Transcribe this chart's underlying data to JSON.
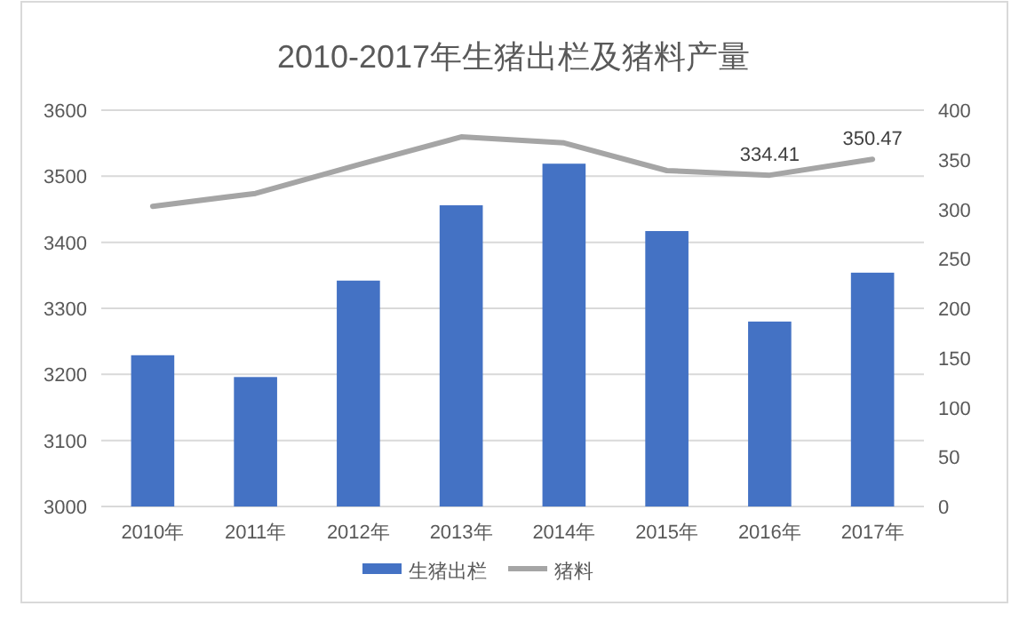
{
  "chart_data": {
    "type": "bar",
    "title": "2010-2017年生猪出栏及猪料产量",
    "categories": [
      "2010年",
      "2011年",
      "2012年",
      "2013年",
      "2014年",
      "2015年",
      "2016年",
      "2017年"
    ],
    "series": [
      {
        "name": "生猪出栏",
        "color": "#4472c4",
        "values": [
          3229,
          3196,
          3342,
          3456,
          3519,
          3417,
          3280,
          3354
        ]
      },
      {
        "name": "猪料",
        "type": "line",
        "axis": "y2",
        "color": "#a5a5a5",
        "values": [
          303,
          316,
          345,
          373,
          367,
          339,
          334.41,
          350.47
        ],
        "value_labels": [
          null,
          null,
          null,
          null,
          null,
          null,
          "334.41",
          "350.47"
        ]
      }
    ],
    "ylim": [
      3000,
      3600
    ],
    "yticks": [
      3000,
      3100,
      3200,
      3300,
      3400,
      3500,
      3600
    ],
    "y2lim": [
      0,
      400
    ],
    "y2ticks": [
      0,
      50,
      100,
      150,
      200,
      250,
      300,
      350,
      400
    ],
    "grid": "y",
    "legend": "bottom"
  }
}
